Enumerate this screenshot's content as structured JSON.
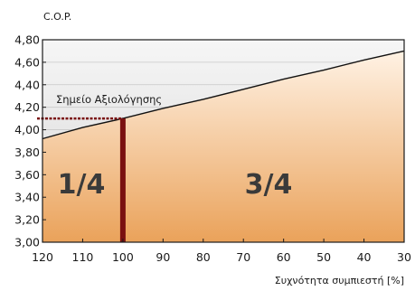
{
  "chart_data": {
    "type": "line",
    "ylabel": "C.O.P.",
    "xlabel": "Συχνότητα συμπιεστή [%]",
    "x_reversed": true,
    "xlim": [
      30,
      120
    ],
    "ylim": [
      3.0,
      4.8
    ],
    "x_ticks": [
      "120",
      "110",
      "100",
      "90",
      "80",
      "70",
      "60",
      "50",
      "40",
      "30"
    ],
    "y_ticks": [
      "3,00",
      "3,20",
      "3,40",
      "3,60",
      "3,80",
      "4,00",
      "4,20",
      "4,40",
      "4,60",
      "4,80"
    ],
    "series": [
      {
        "x": [
          120,
          110,
          100,
          90,
          80,
          70,
          60,
          50,
          40,
          30
        ],
        "y": [
          3.92,
          4.02,
          4.1,
          4.19,
          4.27,
          4.36,
          4.45,
          4.53,
          4.62,
          4.7
        ]
      }
    ],
    "rating_point": {
      "x": 100,
      "y": 4.1,
      "label": "Σημείο Αξιολόγησης"
    },
    "regions": [
      "1/4",
      "3/4"
    ],
    "colors": {
      "line": "#111111",
      "marker": "#7a1010",
      "fill_top": "#f0f0f0",
      "fill_bottom": "#eaa25a"
    }
  }
}
